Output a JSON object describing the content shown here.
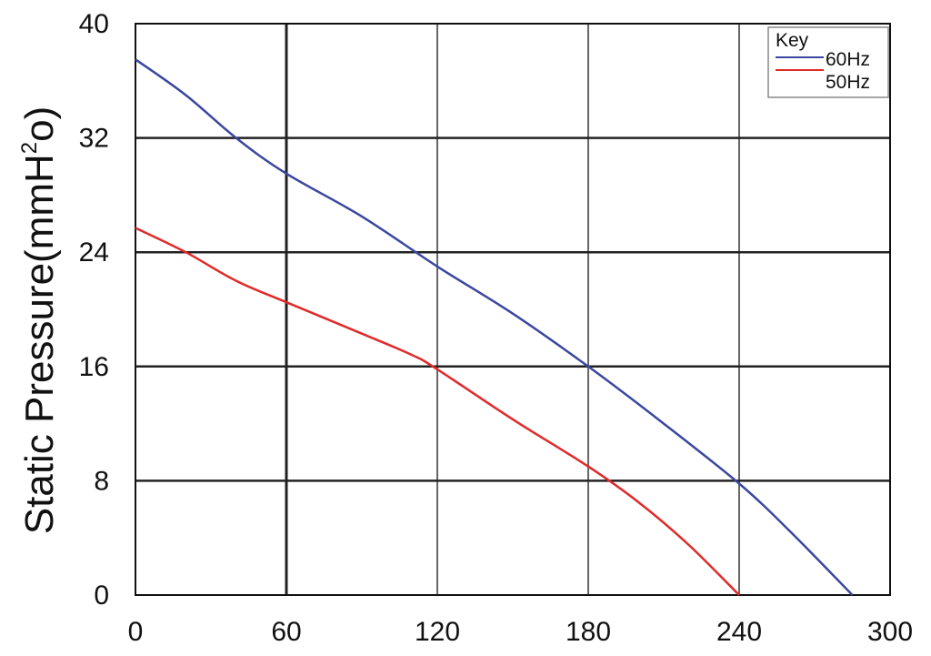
{
  "chart_data": {
    "type": "line",
    "title": "",
    "xlabel": "",
    "ylabel_main": "Static Pressure(mmH",
    "ylabel_sup": "2",
    "ylabel_end": "o)",
    "xlim": [
      0,
      300
    ],
    "ylim": [
      0,
      40
    ],
    "xticks": [
      "0",
      "60",
      "120",
      "180",
      "240",
      "300"
    ],
    "yticks": [
      "0",
      "8",
      "16",
      "24",
      "32",
      "40"
    ],
    "grid": true,
    "legend": {
      "title": "Key",
      "position": "top-right"
    },
    "series": [
      {
        "name": "60Hz",
        "color": "#3a47a0",
        "points": [
          [
            0,
            37.5
          ],
          [
            20,
            35
          ],
          [
            40,
            32
          ],
          [
            60,
            29.5
          ],
          [
            90,
            26.5
          ],
          [
            120,
            23
          ],
          [
            150,
            19.7
          ],
          [
            180,
            16
          ],
          [
            210,
            12
          ],
          [
            240,
            7.8
          ],
          [
            260,
            4.5
          ],
          [
            285,
            0
          ]
        ]
      },
      {
        "name": "50Hz",
        "color": "#e02a2a",
        "points": [
          [
            0,
            25.7
          ],
          [
            20,
            24
          ],
          [
            40,
            22
          ],
          [
            60,
            20.5
          ],
          [
            90,
            18.3
          ],
          [
            110,
            16.8
          ],
          [
            120,
            15.8
          ],
          [
            150,
            12.3
          ],
          [
            180,
            9
          ],
          [
            200,
            6.5
          ],
          [
            220,
            3.5
          ],
          [
            240,
            0
          ]
        ]
      }
    ]
  }
}
